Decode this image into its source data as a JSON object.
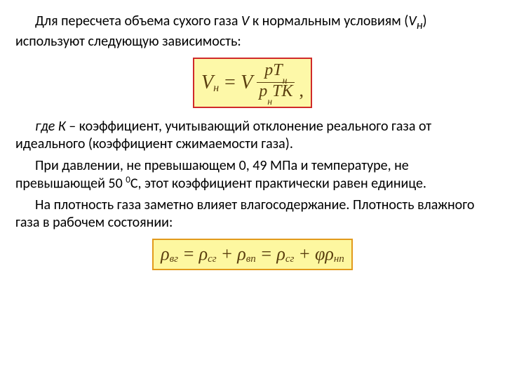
{
  "colors": {
    "text": "#000000",
    "formula_text": "#5a3f0f",
    "box1_bg": "#fdf8a8",
    "box1_border": "#d02a2a",
    "box2_bg": "#fdf7a0",
    "box2_border": "#e29a1c"
  },
  "para1_a": "Для пересчета объема сухого газа ",
  "para1_V": "V",
  "para1_b": " к нормальным условиям (",
  "para1_Vn": "V",
  "para1_Vn_sub": "н",
  "para1_c": ") используют следующую зависимость:",
  "formula1": {
    "Vn": "V",
    "Vn_sub": "н",
    "eq": "=",
    "V": "V",
    "num_p": "p",
    "num_T": "T",
    "num_T_sub": "н",
    "den_p": "p",
    "den_p_sub": "н",
    "den_T": "T",
    "den_K": "K",
    "trail": ","
  },
  "para2_a": "где К",
  "para2_b": " – коэффициент, учитывающий отклонение реального газа от идеального (коэффициент сжимаемости газа).",
  "para3": "При давлении, не превышающем 0, 49 МПа и температуре, не превышающей 50 ",
  "para3_sup": "0",
  "para3_b": "С, этот коэффициент практически равен единице.",
  "para4": " На плотность газа заметно влияет влагосодержание. Плотность влажного газа в рабочем состоянии:",
  "formula2": {
    "r1": "ρ",
    "r1s": "вг",
    "eq": "=",
    "r2": "ρ",
    "r2s": "сг",
    "plus": "+",
    "r3": "ρ",
    "r3s": "вп",
    "eq2": "=",
    "r4": "ρ",
    "r4s": "сг",
    "plus2": "+",
    "phi": "φ",
    "r5": "ρ",
    "r5s": "нп"
  }
}
